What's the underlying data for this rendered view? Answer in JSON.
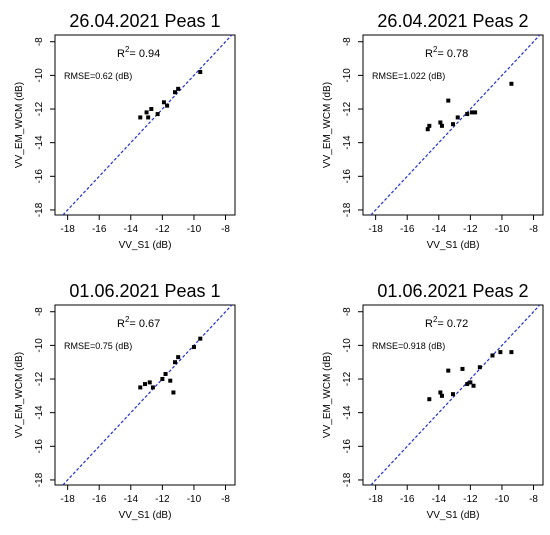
{
  "chart_data": [
    {
      "type": "scatter",
      "title": "26.04.2021 Peas 1",
      "xlabel": "VV_S1 (dB)",
      "ylabel": "VV_EM_WCM (dB)",
      "xlim": [
        -18.8,
        -7.4
      ],
      "ylim": [
        -18.3,
        -7.6
      ],
      "xticks": [
        -18,
        -16,
        -14,
        -12,
        -10,
        -8
      ],
      "yticks": [
        -18,
        -16,
        -14,
        -12,
        -10,
        -8
      ],
      "annotations": [
        {
          "prefix": "R",
          "sup": "2",
          "text": "= 0.94"
        },
        {
          "text": "RMSE=0.62 (dB)"
        }
      ],
      "reference_line": "1:1",
      "points": [
        {
          "x": -13.4,
          "y": -12.5
        },
        {
          "x": -13.0,
          "y": -12.2
        },
        {
          "x": -12.9,
          "y": -12.5
        },
        {
          "x": -12.7,
          "y": -12.0
        },
        {
          "x": -12.3,
          "y": -12.3
        },
        {
          "x": -11.9,
          "y": -11.6
        },
        {
          "x": -11.7,
          "y": -11.8
        },
        {
          "x": -11.2,
          "y": -11.0
        },
        {
          "x": -11.0,
          "y": -10.8
        },
        {
          "x": -9.6,
          "y": -9.8
        }
      ]
    },
    {
      "type": "scatter",
      "title": "26.04.2021 Peas 2",
      "xlabel": "VV_S1 (dB)",
      "ylabel": "VV_EM_WCM (dB)",
      "xlim": [
        -18.8,
        -7.4
      ],
      "ylim": [
        -18.3,
        -7.6
      ],
      "xticks": [
        -18,
        -16,
        -14,
        -12,
        -10,
        -8
      ],
      "yticks": [
        -18,
        -16,
        -14,
        -12,
        -10,
        -8
      ],
      "annotations": [
        {
          "prefix": "R",
          "sup": "2",
          "text": "= 0.78"
        },
        {
          "text": "RMSE=1.022 (dB)"
        }
      ],
      "reference_line": "1:1",
      "points": [
        {
          "x": -14.7,
          "y": -13.2
        },
        {
          "x": -14.6,
          "y": -13.0
        },
        {
          "x": -13.9,
          "y": -12.8
        },
        {
          "x": -13.8,
          "y": -13.0
        },
        {
          "x": -13.4,
          "y": -11.5
        },
        {
          "x": -13.1,
          "y": -12.9
        },
        {
          "x": -12.8,
          "y": -12.5
        },
        {
          "x": -12.2,
          "y": -12.3
        },
        {
          "x": -11.9,
          "y": -12.2
        },
        {
          "x": -11.7,
          "y": -12.2
        },
        {
          "x": -9.4,
          "y": -10.5
        }
      ]
    },
    {
      "type": "scatter",
      "title": "01.06.2021 Peas 1",
      "xlabel": "VV_S1 (dB)",
      "ylabel": "VV_EM_WCM (dB)",
      "xlim": [
        -18.8,
        -7.4
      ],
      "ylim": [
        -18.3,
        -7.6
      ],
      "xticks": [
        -18,
        -16,
        -14,
        -12,
        -10,
        -8
      ],
      "yticks": [
        -18,
        -16,
        -14,
        -12,
        -10,
        -8
      ],
      "annotations": [
        {
          "prefix": "R",
          "sup": "2",
          "text": "= 0.67"
        },
        {
          "text": "RMSE=0.75 (dB)"
        }
      ],
      "reference_line": "1:1",
      "points": [
        {
          "x": -13.4,
          "y": -12.5
        },
        {
          "x": -13.1,
          "y": -12.3
        },
        {
          "x": -12.8,
          "y": -12.2
        },
        {
          "x": -12.6,
          "y": -12.5
        },
        {
          "x": -12.0,
          "y": -12.0
        },
        {
          "x": -11.8,
          "y": -11.7
        },
        {
          "x": -11.5,
          "y": -12.1
        },
        {
          "x": -11.3,
          "y": -12.8
        },
        {
          "x": -11.2,
          "y": -11.0
        },
        {
          "x": -11.0,
          "y": -10.7
        },
        {
          "x": -10.0,
          "y": -10.1
        },
        {
          "x": -9.6,
          "y": -9.6
        }
      ]
    },
    {
      "type": "scatter",
      "title": "01.06.2021 Peas 2",
      "xlabel": "VV_S1 (dB)",
      "ylabel": "VV_EM_WCM (dB)",
      "xlim": [
        -18.8,
        -7.4
      ],
      "ylim": [
        -18.3,
        -7.6
      ],
      "xticks": [
        -18,
        -16,
        -14,
        -12,
        -10,
        -8
      ],
      "yticks": [
        -18,
        -16,
        -14,
        -12,
        -10,
        -8
      ],
      "annotations": [
        {
          "prefix": "R",
          "sup": "2",
          "text": "= 0.72"
        },
        {
          "text": "RMSE=0.918 (dB)"
        }
      ],
      "reference_line": "1:1",
      "points": [
        {
          "x": -14.6,
          "y": -13.2
        },
        {
          "x": -13.9,
          "y": -12.8
        },
        {
          "x": -13.8,
          "y": -13.0
        },
        {
          "x": -13.4,
          "y": -11.5
        },
        {
          "x": -13.1,
          "y": -12.9
        },
        {
          "x": -12.5,
          "y": -11.4
        },
        {
          "x": -12.2,
          "y": -12.3
        },
        {
          "x": -12.0,
          "y": -12.2
        },
        {
          "x": -11.8,
          "y": -12.4
        },
        {
          "x": -11.4,
          "y": -11.3
        },
        {
          "x": -10.6,
          "y": -10.6
        },
        {
          "x": -10.1,
          "y": -10.4
        },
        {
          "x": -9.4,
          "y": -10.4
        }
      ]
    }
  ],
  "colors": {
    "reference_line": "#1f2fd6",
    "points": "#000000",
    "axes": "#000000"
  }
}
